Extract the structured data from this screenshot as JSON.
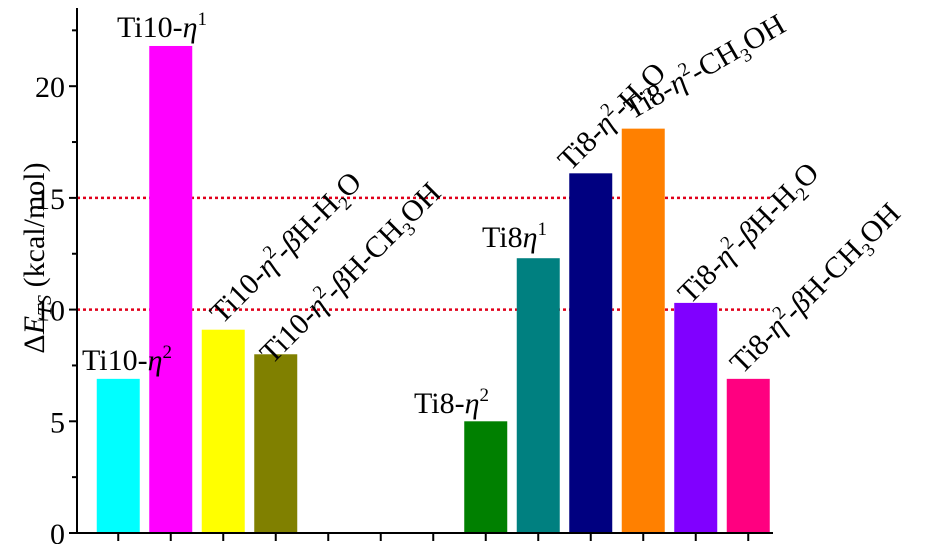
{
  "chart_data": {
    "type": "bar",
    "title": "",
    "xlabel": "",
    "ylabel": "ΔE_TS (kcal/mol)",
    "ylabel_parts": {
      "delta": "Δ",
      "symbol": "E",
      "subscript": "TS",
      "units": " (kcal/mol)"
    },
    "ylim": [
      0,
      23.5
    ],
    "yticks": [
      0,
      5,
      10,
      15,
      20
    ],
    "grid": false,
    "reference_lines": [
      {
        "y": 10,
        "color": "#e0001b",
        "style": "dotted"
      },
      {
        "y": 15,
        "color": "#e0001b",
        "style": "dotted"
      }
    ],
    "categories": [
      "Ti10-η2",
      "Ti10-η1",
      "Ti10-η2-βH-H2O",
      "Ti10-η2-βH-CH3OH",
      "",
      "",
      "",
      "Ti8-η2",
      "Ti8η1",
      "Ti8-η2-H2O",
      "Ti8-η2-CH3OH",
      "Ti8-η2-βH-H2O",
      "Ti8-η2-βH-CH3OH"
    ],
    "values": [
      6.9,
      21.8,
      9.1,
      8.0,
      null,
      null,
      null,
      5.0,
      12.3,
      16.1,
      18.1,
      10.3,
      6.9
    ],
    "colors": [
      "#00ffff",
      "#ff00ff",
      "#ffff00",
      "#808000",
      null,
      null,
      null,
      "#008000",
      "#008080",
      "#000080",
      "#ff8000",
      "#8000ff",
      "#ff0080"
    ],
    "bar_labels": [
      {
        "text": "Ti10-η2",
        "base": "Ti10-",
        "parts": [
          [
            "η",
            "i"
          ],
          [
            "2",
            "sup"
          ]
        ],
        "rotation": 0
      },
      {
        "text": "Ti10-η1",
        "base": "Ti10-",
        "parts": [
          [
            "η",
            "i"
          ],
          [
            "1",
            "sup"
          ]
        ],
        "rotation": 0
      },
      {
        "text": "Ti10-η2-βH-H2O",
        "base": "Ti10-",
        "parts": [
          [
            "η",
            "i"
          ],
          [
            "2",
            "sup"
          ],
          [
            "-",
            "n"
          ],
          [
            "β",
            "i"
          ],
          [
            "H-H",
            "n"
          ],
          [
            "2",
            "sub"
          ],
          [
            "O",
            "n"
          ]
        ],
        "rotation": -45
      },
      {
        "text": "Ti10-η2-βH-CH3OH",
        "base": "Ti10-",
        "parts": [
          [
            "η",
            "i"
          ],
          [
            "2",
            "sup"
          ],
          [
            "-",
            "n"
          ],
          [
            "β",
            "i"
          ],
          [
            "H-CH",
            "n"
          ],
          [
            "3",
            "sub"
          ],
          [
            "OH",
            "n"
          ]
        ],
        "rotation": -45
      },
      null,
      null,
      null,
      {
        "text": "Ti8-η2",
        "base": "Ti8-",
        "parts": [
          [
            "η",
            "i"
          ],
          [
            "2",
            "sup"
          ]
        ],
        "rotation": 0
      },
      {
        "text": "Ti8η1",
        "base": "Ti8",
        "parts": [
          [
            "η",
            "i"
          ],
          [
            "1",
            "sup"
          ]
        ],
        "rotation": 0
      },
      {
        "text": "Ti8-η2-H2O",
        "base": "Ti8-",
        "parts": [
          [
            "η",
            "i"
          ],
          [
            "2",
            "sup"
          ],
          [
            "-H",
            "n"
          ],
          [
            "2",
            "sub"
          ],
          [
            "O",
            "n"
          ]
        ],
        "rotation": -45
      },
      {
        "text": "Ti8-η2-CH3OH",
        "base": "Ti8-",
        "parts": [
          [
            "η",
            "i"
          ],
          [
            "2",
            "sup"
          ],
          [
            "-CH",
            "n"
          ],
          [
            "3",
            "sub"
          ],
          [
            "OH",
            "n"
          ]
        ],
        "rotation": -30
      },
      {
        "text": "Ti8-η2-βH-H2O",
        "base": "Ti8-",
        "parts": [
          [
            "η",
            "i"
          ],
          [
            "2",
            "sup"
          ],
          [
            "-",
            "n"
          ],
          [
            "β",
            "i"
          ],
          [
            "H-H",
            "n"
          ],
          [
            "2",
            "sub"
          ],
          [
            "O",
            "n"
          ]
        ],
        "rotation": -45
      },
      {
        "text": "Ti8-η2-βH-CH3OH",
        "base": "Ti8-",
        "parts": [
          [
            "η",
            "i"
          ],
          [
            "2",
            "sup"
          ],
          [
            "-",
            "n"
          ],
          [
            "β",
            "i"
          ],
          [
            "H-CH",
            "n"
          ],
          [
            "3",
            "sub"
          ],
          [
            "OH",
            "n"
          ]
        ],
        "rotation": -45
      }
    ]
  }
}
